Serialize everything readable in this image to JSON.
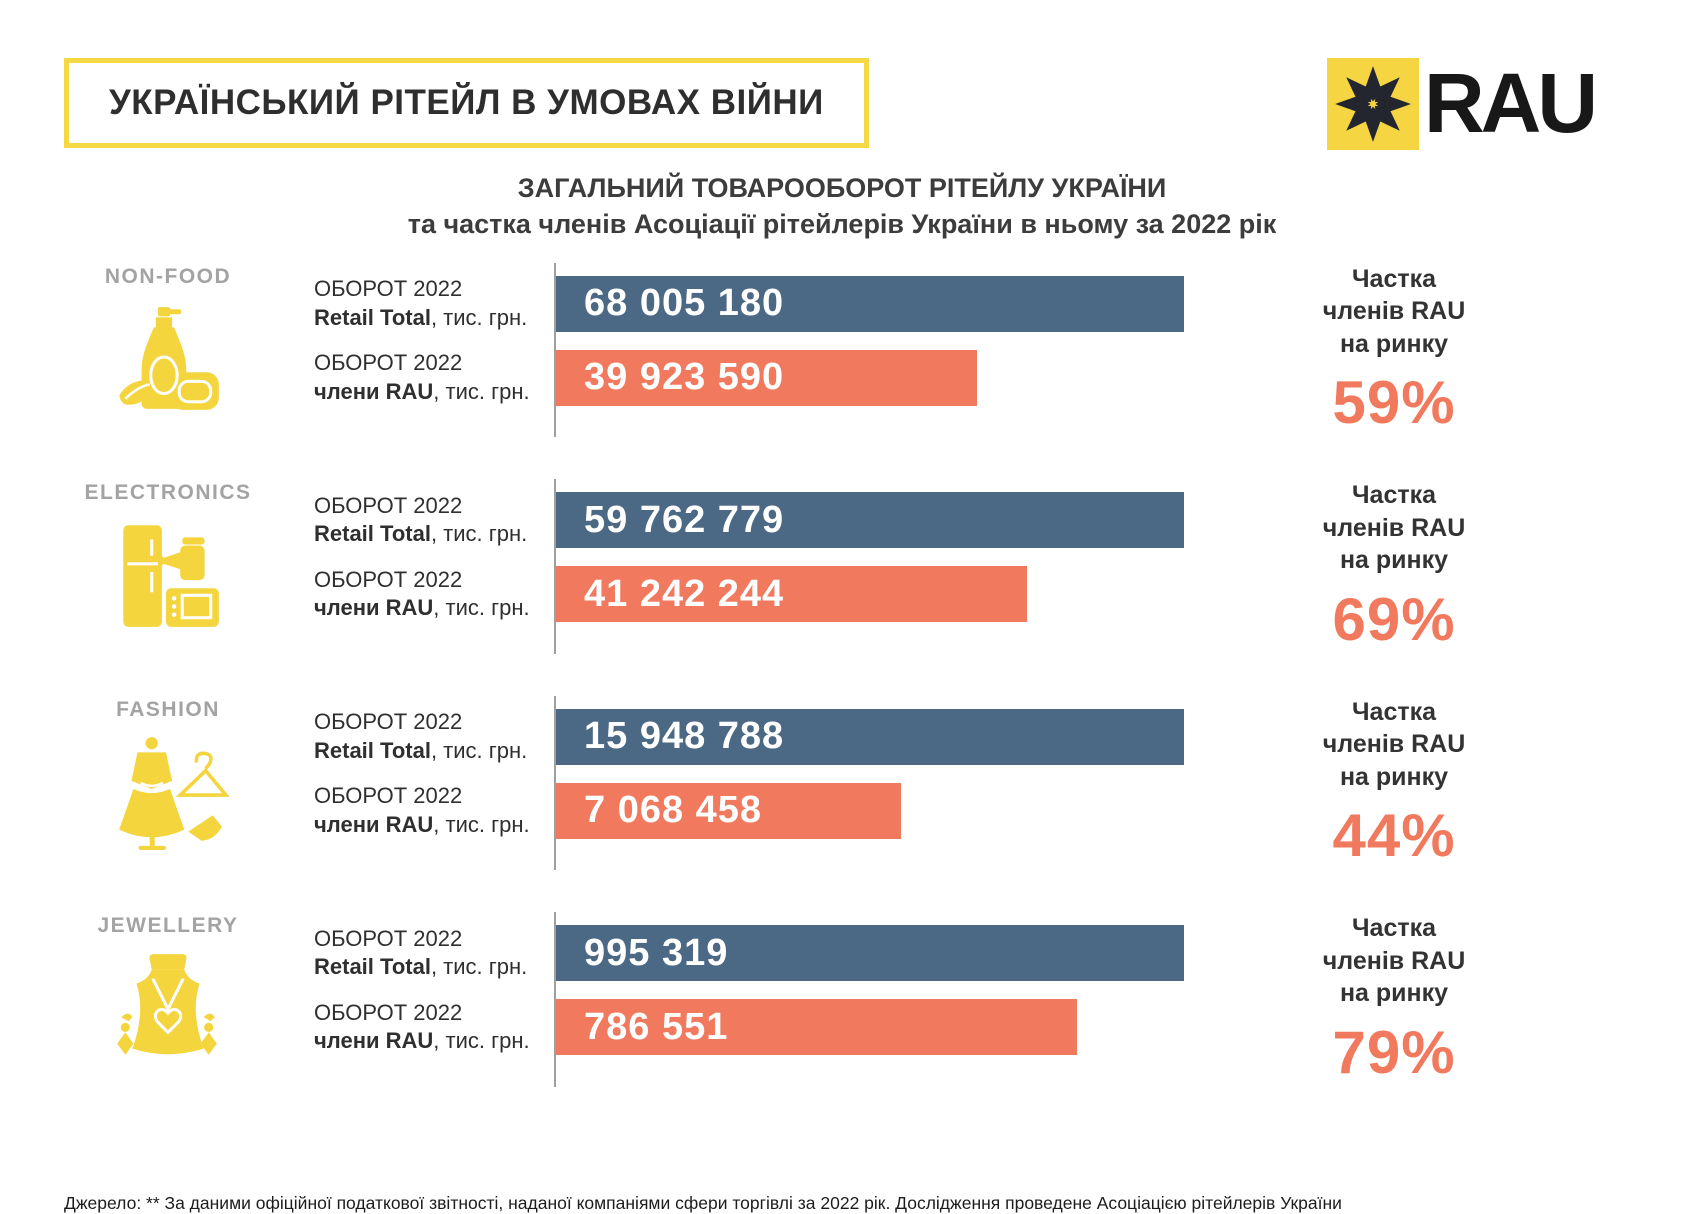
{
  "header": {
    "title": "УКРАЇНСЬКИЙ РІТЕЙЛ В УМОВАХ ВІЙНИ",
    "logo_text": "RAU",
    "logo_icon": "rau-star-icon",
    "logo_color": "#f5d542"
  },
  "subtitle": {
    "line1": "ЗАГАЛЬНИЙ ТОВАРООБОРОТ РІТЕЙЛУ УКРАЇНИ",
    "line2": "та частка членів Асоціації рітейлерів України в ньому за 2022 рік"
  },
  "labels": {
    "turnover": "ОБОРОТ 2022",
    "total_bold": "Retail Total",
    "rau_bold": "члени RAU",
    "unit": ", тис. грн.",
    "share_line1": "Частка",
    "share_line2": "членів RAU",
    "share_line3": "на ринку"
  },
  "colors": {
    "total_bar": "#4b6884",
    "rau_bar": "#f0795e",
    "accent_yellow": "#f5d542",
    "icon_yellow": "#f4d53e",
    "category_gray": "#a3a3a3",
    "percent_orange": "#f0795e"
  },
  "sections": [
    {
      "label": "NON-FOOD",
      "icon": "cleaning-products-icon",
      "total_display": "68 005 180",
      "rau_display": "39 923 590",
      "share_display": "59%",
      "total_bar_pct": 100,
      "rau_bar_pct": 67
    },
    {
      "label": "ELECTRONICS",
      "icon": "home-appliances-icon",
      "total_display": "59 762 779",
      "rau_display": "41 242 244",
      "share_display": "69%",
      "total_bar_pct": 100,
      "rau_bar_pct": 75
    },
    {
      "label": "FASHION",
      "icon": "dress-hanger-icon",
      "total_display": "15 948 788",
      "rau_display": "7 068 458",
      "share_display": "44%",
      "total_bar_pct": 100,
      "rau_bar_pct": 55
    },
    {
      "label": "JEWELLERY",
      "icon": "necklace-icon",
      "total_display": "995 319",
      "rau_display": "786 551",
      "share_display": "79%",
      "total_bar_pct": 100,
      "rau_bar_pct": 83
    }
  ],
  "chart_data": {
    "type": "bar",
    "orientation": "horizontal",
    "title": "ЗАГАЛЬНИЙ ТОВАРООБОРОТ РІТЕЙЛУ УКРАЇНИ та частка членів Асоціації рітейлерів України в ньому за 2022 рік",
    "categories": [
      "NON-FOOD",
      "ELECTRONICS",
      "FASHION",
      "JEWELLERY"
    ],
    "series": [
      {
        "name": "ОБОРОТ 2022 Retail Total, тис. грн.",
        "color": "#4b6884",
        "values": [
          68005180,
          59762779,
          15948788,
          995319
        ]
      },
      {
        "name": "ОБОРОТ 2022 члени RAU, тис. грн.",
        "color": "#f0795e",
        "values": [
          39923590,
          41242244,
          7068458,
          786551
        ]
      }
    ],
    "share_of_rau_percent": [
      59,
      69,
      44,
      79
    ],
    "unit": "тис. грн.",
    "legend_position": "none",
    "grid": false,
    "layout_hint": "total bars drawn full width; RAU bar widths drawn at 67/75/55/83% of total bar"
  },
  "footer": {
    "source": "Джерело: ** За даними офіційної податкової звітності, наданої компаніями сфери торгівлі за 2022 рік. Дослідження проведене Асоціацією рітейлерів України"
  }
}
